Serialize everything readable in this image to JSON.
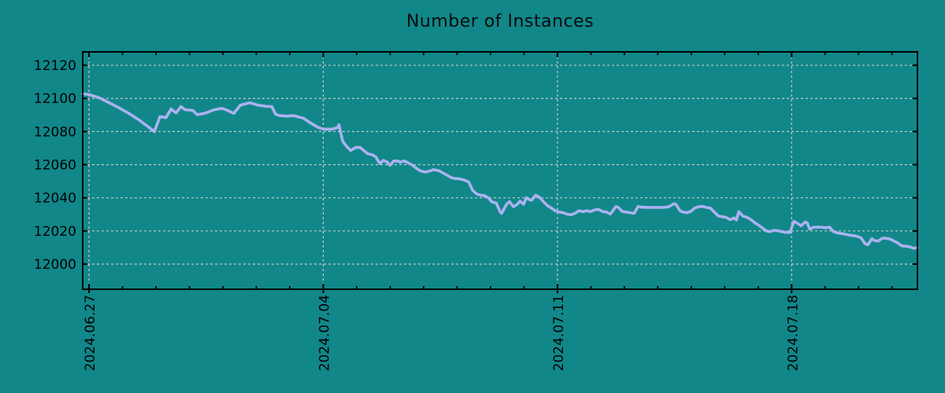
{
  "window": {
    "background_color": "#118789"
  },
  "chart_data": {
    "type": "line",
    "title": "Number of Instances",
    "xlabel": "",
    "ylabel": "",
    "legend_position": "none",
    "grid": {
      "visible": true,
      "style": "dashed",
      "color": "#c8c8c8"
    },
    "colors": {
      "background": "#118789",
      "line": "#aab2f0",
      "axis": "#000000",
      "text": "#000000"
    },
    "x_axis": {
      "unit": "days since 2024.06.27",
      "xlim_days": [
        -0.19,
        24.76
      ],
      "minor_tick_interval_days": 1,
      "major_ticks": [
        {
          "day": 0,
          "label": "2024.06.27"
        },
        {
          "day": 7,
          "label": "2024.07.04"
        },
        {
          "day": 14,
          "label": "2024.07.11"
        },
        {
          "day": 21,
          "label": "2024.07.18"
        }
      ]
    },
    "y_axis": {
      "ticks": [
        12000,
        12020,
        12040,
        12060,
        12080,
        12100,
        12120
      ],
      "ylim": [
        11984.8,
        12128.1
      ]
    },
    "series": [
      {
        "name": "instances",
        "color": "#aab2f0",
        "points": [
          [
            -0.19,
            12102.8
          ],
          [
            0,
            12102.3
          ],
          [
            0.3,
            12100.4
          ],
          [
            0.6,
            12097.4
          ],
          [
            0.9,
            12094.3
          ],
          [
            1.2,
            12090.8
          ],
          [
            1.5,
            12086.9
          ],
          [
            1.8,
            12082.4
          ],
          [
            1.95,
            12079.9
          ],
          [
            2.12,
            12089.0
          ],
          [
            2.3,
            12088.4
          ],
          [
            2.45,
            12093.6
          ],
          [
            2.6,
            12091.3
          ],
          [
            2.75,
            12095.1
          ],
          [
            2.87,
            12093.2
          ],
          [
            3.11,
            12092.7
          ],
          [
            3.23,
            12090.2
          ],
          [
            3.46,
            12091.0
          ],
          [
            3.74,
            12093.2
          ],
          [
            3.98,
            12094.0
          ],
          [
            4.1,
            12093.1
          ],
          [
            4.33,
            12091.0
          ],
          [
            4.52,
            12095.9
          ],
          [
            4.8,
            12097.4
          ],
          [
            5.06,
            12095.9
          ],
          [
            5.3,
            12095.2
          ],
          [
            5.46,
            12095.1
          ],
          [
            5.58,
            12090.4
          ],
          [
            5.7,
            12089.6
          ],
          [
            5.93,
            12089.3
          ],
          [
            6.12,
            12089.6
          ],
          [
            6.24,
            12088.9
          ],
          [
            6.4,
            12088.1
          ],
          [
            6.64,
            12084.9
          ],
          [
            6.87,
            12082.3
          ],
          [
            7.0,
            12081.5
          ],
          [
            7.25,
            12081.4
          ],
          [
            7.42,
            12082.3
          ],
          [
            7.47,
            12084.1
          ],
          [
            7.58,
            12074.2
          ],
          [
            7.7,
            12071.0
          ],
          [
            7.82,
            12068.6
          ],
          [
            7.98,
            12070.5
          ],
          [
            8.1,
            12070.4
          ],
          [
            8.33,
            12066.6
          ],
          [
            8.48,
            12065.9
          ],
          [
            8.57,
            12064.7
          ],
          [
            8.69,
            12060.7
          ],
          [
            8.8,
            12062.6
          ],
          [
            8.92,
            12061.5
          ],
          [
            9.0,
            12059.6
          ],
          [
            9.11,
            12062.3
          ],
          [
            9.23,
            12062.2
          ],
          [
            9.3,
            12061.5
          ],
          [
            9.42,
            12062.3
          ],
          [
            9.65,
            12059.9
          ],
          [
            9.77,
            12058.0
          ],
          [
            9.89,
            12056.4
          ],
          [
            10.05,
            12055.5
          ],
          [
            10.22,
            12056.4
          ],
          [
            10.29,
            12057.0
          ],
          [
            10.45,
            12056.4
          ],
          [
            10.69,
            12053.8
          ],
          [
            10.83,
            12052.2
          ],
          [
            10.95,
            12051.6
          ],
          [
            11.06,
            12051.5
          ],
          [
            11.23,
            12050.6
          ],
          [
            11.35,
            12049.5
          ],
          [
            11.46,
            12044.7
          ],
          [
            11.58,
            12042.4
          ],
          [
            11.7,
            12041.6
          ],
          [
            11.82,
            12041.3
          ],
          [
            11.93,
            12040.1
          ],
          [
            12.05,
            12037.4
          ],
          [
            12.17,
            12036.9
          ],
          [
            12.29,
            12031.4
          ],
          [
            12.33,
            12030.6
          ],
          [
            12.48,
            12036.1
          ],
          [
            12.57,
            12037.7
          ],
          [
            12.68,
            12034.6
          ],
          [
            12.8,
            12036.1
          ],
          [
            12.88,
            12038.0
          ],
          [
            12.99,
            12036.1
          ],
          [
            13.07,
            12040.1
          ],
          [
            13.16,
            12039.0
          ],
          [
            13.23,
            12038.5
          ],
          [
            13.35,
            12041.6
          ],
          [
            13.46,
            12040.4
          ],
          [
            13.58,
            12037.7
          ],
          [
            13.7,
            12035.3
          ],
          [
            13.82,
            12033.8
          ],
          [
            13.93,
            12032.2
          ],
          [
            14.05,
            12031.4
          ],
          [
            14.17,
            12031.0
          ],
          [
            14.29,
            12030.1
          ],
          [
            14.4,
            12029.8
          ],
          [
            14.52,
            12030.6
          ],
          [
            14.64,
            12032.2
          ],
          [
            14.76,
            12031.7
          ],
          [
            14.88,
            12032.2
          ],
          [
            14.99,
            12031.7
          ],
          [
            15.11,
            12032.7
          ],
          [
            15.23,
            12033.0
          ],
          [
            15.35,
            12031.7
          ],
          [
            15.47,
            12031.4
          ],
          [
            15.58,
            12030.1
          ],
          [
            15.75,
            12034.8
          ],
          [
            15.82,
            12034.2
          ],
          [
            15.94,
            12031.7
          ],
          [
            16.06,
            12031.4
          ],
          [
            16.17,
            12031.0
          ],
          [
            16.29,
            12030.6
          ],
          [
            16.41,
            12034.8
          ],
          [
            16.53,
            12034.3
          ],
          [
            16.8,
            12034.2
          ],
          [
            17.1,
            12034.2
          ],
          [
            17.23,
            12034.3
          ],
          [
            17.35,
            12034.8
          ],
          [
            17.47,
            12036.4
          ],
          [
            17.54,
            12036.1
          ],
          [
            17.66,
            12032.2
          ],
          [
            17.75,
            12031.4
          ],
          [
            17.87,
            12031.0
          ],
          [
            17.98,
            12031.7
          ],
          [
            18.1,
            12033.8
          ],
          [
            18.22,
            12034.6
          ],
          [
            18.34,
            12034.8
          ],
          [
            18.45,
            12034.2
          ],
          [
            18.57,
            12033.8
          ],
          [
            18.69,
            12031.4
          ],
          [
            18.81,
            12029.0
          ],
          [
            18.92,
            12028.6
          ],
          [
            19.04,
            12028.2
          ],
          [
            19.16,
            12026.8
          ],
          [
            19.28,
            12027.9
          ],
          [
            19.35,
            12026.6
          ],
          [
            19.42,
            12031.7
          ],
          [
            19.54,
            12029.0
          ],
          [
            19.66,
            12028.2
          ],
          [
            19.77,
            12027.0
          ],
          [
            19.89,
            12025.1
          ],
          [
            20.01,
            12023.5
          ],
          [
            20.12,
            12021.9
          ],
          [
            20.24,
            12020.0
          ],
          [
            20.36,
            12019.6
          ],
          [
            20.48,
            12020.4
          ],
          [
            20.6,
            12020.0
          ],
          [
            20.71,
            12019.6
          ],
          [
            20.83,
            12019.1
          ],
          [
            20.95,
            12019.1
          ],
          [
            21.07,
            12025.8
          ],
          [
            21.16,
            12024.7
          ],
          [
            21.28,
            12023.1
          ],
          [
            21.4,
            12025.4
          ],
          [
            21.47,
            12024.7
          ],
          [
            21.54,
            12021.1
          ],
          [
            21.66,
            12022.3
          ],
          [
            21.78,
            12022.3
          ],
          [
            21.89,
            12022.3
          ],
          [
            22.01,
            12021.9
          ],
          [
            22.13,
            12022.3
          ],
          [
            22.25,
            12019.6
          ],
          [
            22.36,
            12018.8
          ],
          [
            22.48,
            12018.5
          ],
          [
            22.6,
            12018.0
          ],
          [
            22.72,
            12017.5
          ],
          [
            22.83,
            12017.2
          ],
          [
            22.95,
            12016.8
          ],
          [
            23.07,
            12015.9
          ],
          [
            23.19,
            12012.4
          ],
          [
            23.28,
            12011.6
          ],
          [
            23.4,
            12015.3
          ],
          [
            23.47,
            12014.2
          ],
          [
            23.59,
            12013.9
          ],
          [
            23.71,
            12015.6
          ],
          [
            23.82,
            12015.6
          ],
          [
            23.94,
            12015.1
          ],
          [
            24.06,
            12013.9
          ],
          [
            24.18,
            12012.6
          ],
          [
            24.29,
            12011.0
          ],
          [
            24.41,
            12010.8
          ],
          [
            24.53,
            12010.4
          ],
          [
            24.65,
            12009.5
          ],
          [
            24.76,
            12010.0
          ]
        ]
      }
    ]
  }
}
